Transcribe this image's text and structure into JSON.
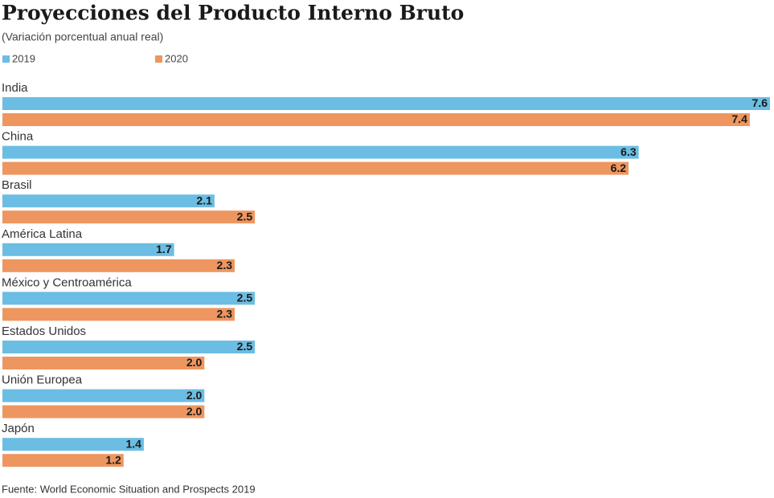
{
  "chart_data": {
    "type": "bar",
    "title": "Proyecciones del Producto Interno Bruto",
    "subtitle": "(Variación porcentual anual real)",
    "source": "Fuente: World Economic Situation and Prospects 2019",
    "categories": [
      "India",
      "China",
      "Brasil",
      "América Latina",
      "México y Centroamérica",
      "Estados Unidos",
      "Unión Europea",
      "Japón"
    ],
    "series": [
      {
        "name": "2019",
        "color": "#6bbde3",
        "values": [
          7.6,
          6.3,
          2.1,
          1.7,
          2.5,
          2.5,
          2.0,
          1.4
        ],
        "value_labels": [
          "7.6",
          "6.3",
          "2.1",
          "1.7",
          "2.5",
          "2.5",
          "2.0",
          "1.4"
        ]
      },
      {
        "name": "2020",
        "color": "#ee965f",
        "values": [
          7.4,
          6.2,
          2.5,
          2.3,
          2.3,
          2.0,
          2.0,
          1.2
        ],
        "value_labels": [
          "7.4",
          "6.2",
          "2.5",
          "2.3",
          "2.3",
          "2.0",
          "2.0",
          "1.2"
        ]
      }
    ]
  }
}
